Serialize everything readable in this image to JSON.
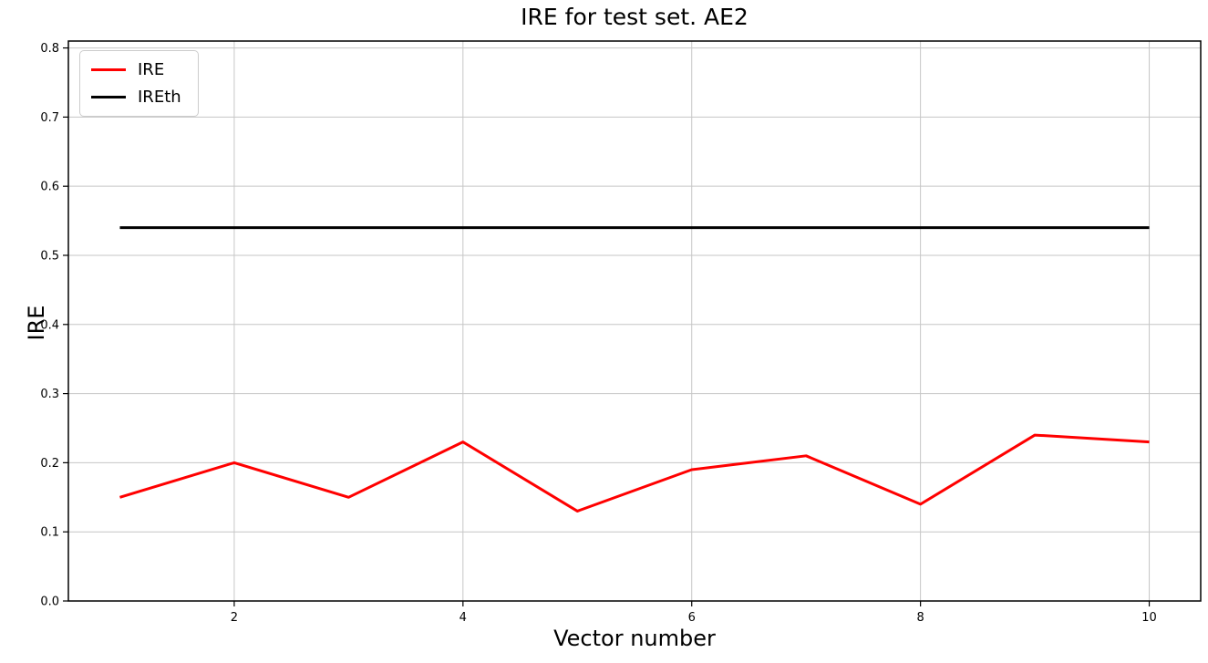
{
  "chart_data": {
    "type": "line",
    "title": "IRE for test set. AE2",
    "xlabel": "Vector number",
    "ylabel": "IRE",
    "x": [
      1,
      2,
      3,
      4,
      5,
      6,
      7,
      8,
      9,
      10
    ],
    "series": [
      {
        "name": "IRE",
        "color": "#ff0000",
        "values": [
          0.15,
          0.2,
          0.15,
          0.23,
          0.13,
          0.19,
          0.21,
          0.14,
          0.24,
          0.23
        ]
      },
      {
        "name": "IREth",
        "color": "#000000",
        "values": [
          0.54,
          0.54,
          0.54,
          0.54,
          0.54,
          0.54,
          0.54,
          0.54,
          0.54,
          0.54
        ]
      }
    ],
    "xlim": [
      0.55,
      10.45
    ],
    "ylim": [
      0,
      0.81
    ],
    "xticks": [
      2,
      4,
      6,
      8,
      10
    ],
    "xtick_labels": [
      "2",
      "4",
      "6",
      "8",
      "10"
    ],
    "yticks": [
      0.0,
      0.1,
      0.2,
      0.3,
      0.4,
      0.5,
      0.6,
      0.7,
      0.8
    ],
    "ytick_labels": [
      "0.0",
      "0.1",
      "0.2",
      "0.3",
      "0.4",
      "0.5",
      "0.6",
      "0.7",
      "0.8"
    ],
    "grid": true,
    "grid_color": "#c6c6c6",
    "spine_color": "#000000",
    "legend_position": "upper-left",
    "legend_border_color": "#cccccc",
    "line_width": 3
  }
}
